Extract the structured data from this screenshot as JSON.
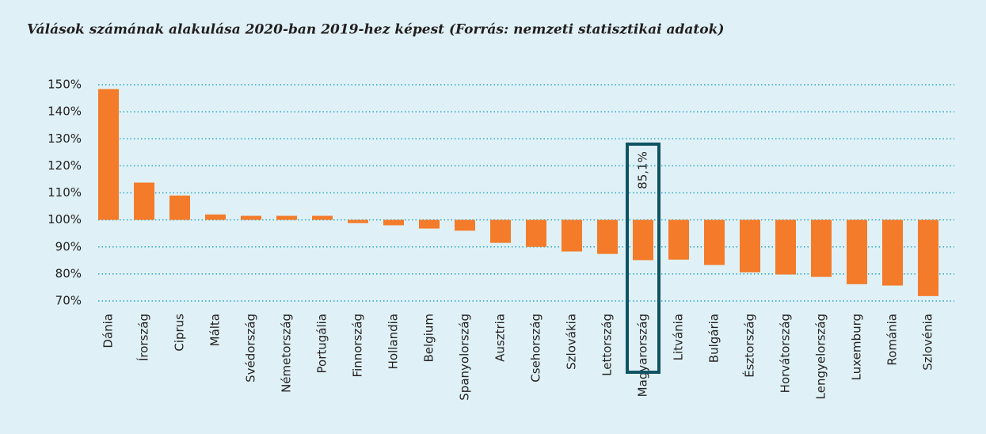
{
  "chart_data": {
    "type": "bar",
    "title": "Válások számának alakulása 2020-ban 2019-hez képest (Forrás: nemzeti statisztikai adatok)",
    "categories": [
      "Dánia",
      "Írország",
      "Ciprus",
      "Málta",
      "Svédország",
      "Németország",
      "Portugália",
      "Finnország",
      "Hollandia",
      "Belgium",
      "Spanyolország",
      "Ausztria",
      "Csehország",
      "Szlovákia",
      "Lettország",
      "Magyarország",
      "Litvánia",
      "Bulgária",
      "Észtország",
      "Horvátország",
      "Lengyelország",
      "Luxemburg",
      "Románia",
      "Szlovénia"
    ],
    "values": [
      148.4,
      113.8,
      109,
      102,
      101.5,
      101.5,
      101.5,
      98.8,
      98,
      96.8,
      96,
      91.5,
      90,
      88.3,
      87.4,
      85.1,
      85.3,
      83.3,
      80.6,
      79.8,
      78.9,
      76.2,
      75.7,
      71.8
    ],
    "value_labels": [
      null,
      null,
      null,
      null,
      null,
      null,
      null,
      null,
      null,
      null,
      null,
      null,
      null,
      null,
      null,
      "85,1%",
      null,
      null,
      null,
      null,
      null,
      null,
      null,
      null
    ],
    "base": 100,
    "color": "#f47b2a",
    "ylim": [
      70,
      150
    ],
    "yticks": [
      {
        "value": 70,
        "label": "70%"
      },
      {
        "value": 80,
        "label": "80%"
      },
      {
        "value": 90,
        "label": "90%"
      },
      {
        "value": 100,
        "label": "100%"
      },
      {
        "value": 110,
        "label": "110%"
      },
      {
        "value": 120,
        "label": "120%"
      },
      {
        "value": 130,
        "label": "130%"
      },
      {
        "value": 140,
        "label": "140%"
      },
      {
        "value": 150,
        "label": "150%"
      }
    ],
    "grid": true
  }
}
